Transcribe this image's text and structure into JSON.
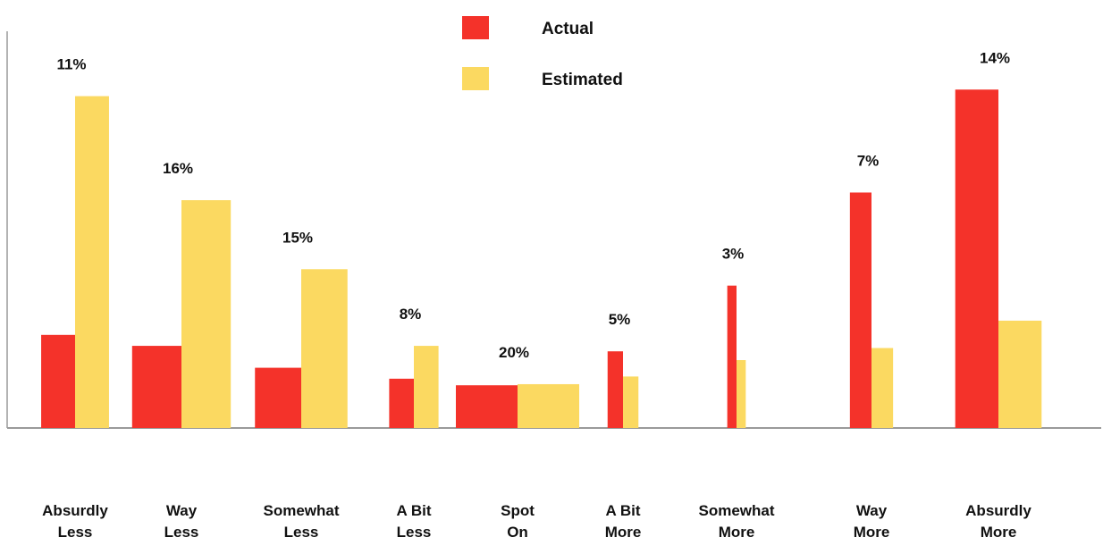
{
  "chart_data": {
    "type": "bar",
    "title": "",
    "xlabel": "",
    "ylabel": "",
    "grid": false,
    "legend_placement": "top-center",
    "categories": [
      [
        "Absurdly",
        "Less"
      ],
      [
        "Way",
        "Less"
      ],
      [
        "Somewhat",
        "Less"
      ],
      [
        "A Bit",
        "Less"
      ],
      [
        "Spot",
        "On"
      ],
      [
        "A Bit",
        "More"
      ],
      [
        "Somewhat",
        "More"
      ],
      [
        "Way",
        "More"
      ],
      [
        "Absurdly",
        "More"
      ]
    ],
    "category_weights_percent_labels": [
      "11%",
      "16%",
      "15%",
      "8%",
      "20%",
      "5%",
      "3%",
      "7%",
      "14%"
    ],
    "category_weights_percent": [
      11,
      16,
      15,
      8,
      20,
      5,
      3,
      7,
      14
    ],
    "series": [
      {
        "name": "Actual",
        "color": "#f4322a",
        "values": [
          8.5,
          7.5,
          5.5,
          4.5,
          3.9,
          7.0,
          13.0,
          21.5,
          30.9
        ]
      },
      {
        "name": "Estimated",
        "color": "#fbd961",
        "values": [
          30.3,
          20.8,
          14.5,
          7.5,
          4.0,
          4.7,
          6.2,
          7.3,
          9.8
        ]
      }
    ],
    "ylim": [
      0,
      35
    ]
  }
}
